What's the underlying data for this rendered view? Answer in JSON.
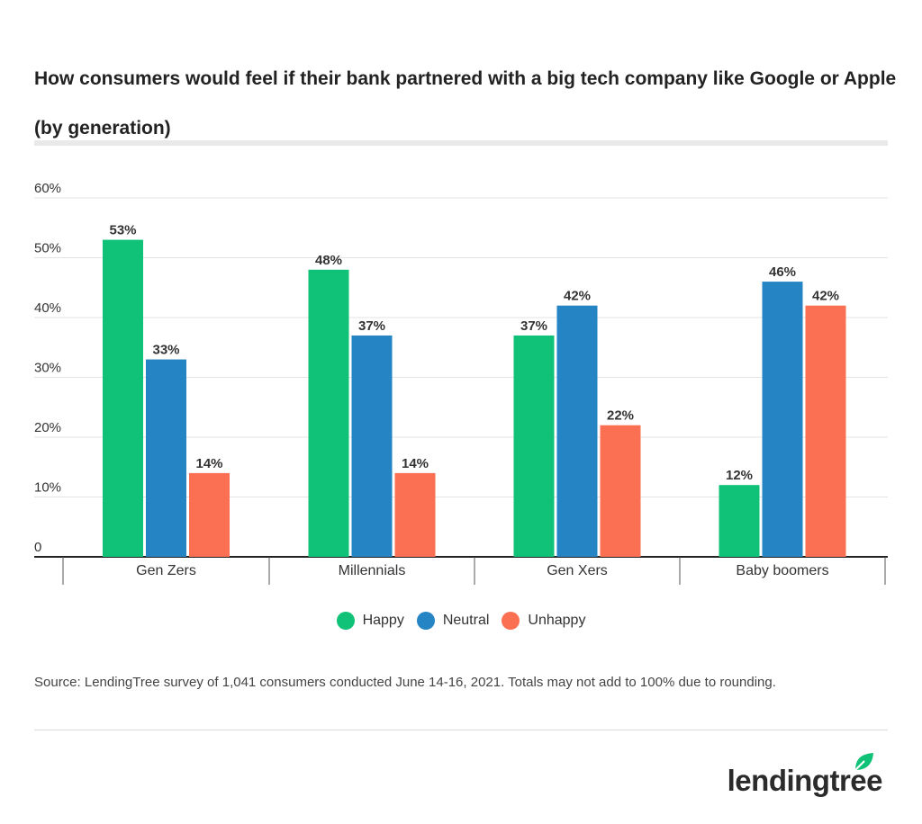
{
  "title": "How consumers would feel if their bank partnered with a big tech company like Google or Apple (by generation)",
  "source": "Source: LendingTree survey of 1,041 consumers conducted June 14-16, 2021. Totals may not add to 100% due to rounding.",
  "logo_text": "lendingtree",
  "colors": {
    "happy": "#10c277",
    "neutral": "#2584c4",
    "unhappy": "#fb7053",
    "leaf": "#10c277"
  },
  "chart_data": {
    "type": "bar",
    "categories": [
      "Gen Zers",
      "Millennials",
      "Gen Xers",
      "Baby boomers"
    ],
    "series": [
      {
        "name": "Happy",
        "values": [
          53,
          48,
          37,
          12
        ],
        "color": "#10c277"
      },
      {
        "name": "Neutral",
        "values": [
          33,
          37,
          42,
          46
        ],
        "color": "#2584c4"
      },
      {
        "name": "Unhappy",
        "values": [
          14,
          14,
          22,
          42
        ],
        "color": "#fb7053"
      }
    ],
    "ylim": [
      0,
      60
    ],
    "yticks": [
      0,
      10,
      20,
      30,
      40,
      50,
      60
    ],
    "ytick_labels": [
      "0",
      "10%",
      "20%",
      "30%",
      "40%",
      "50%",
      "60%"
    ],
    "value_suffix": "%",
    "grid": true,
    "legend_position": "bottom"
  }
}
